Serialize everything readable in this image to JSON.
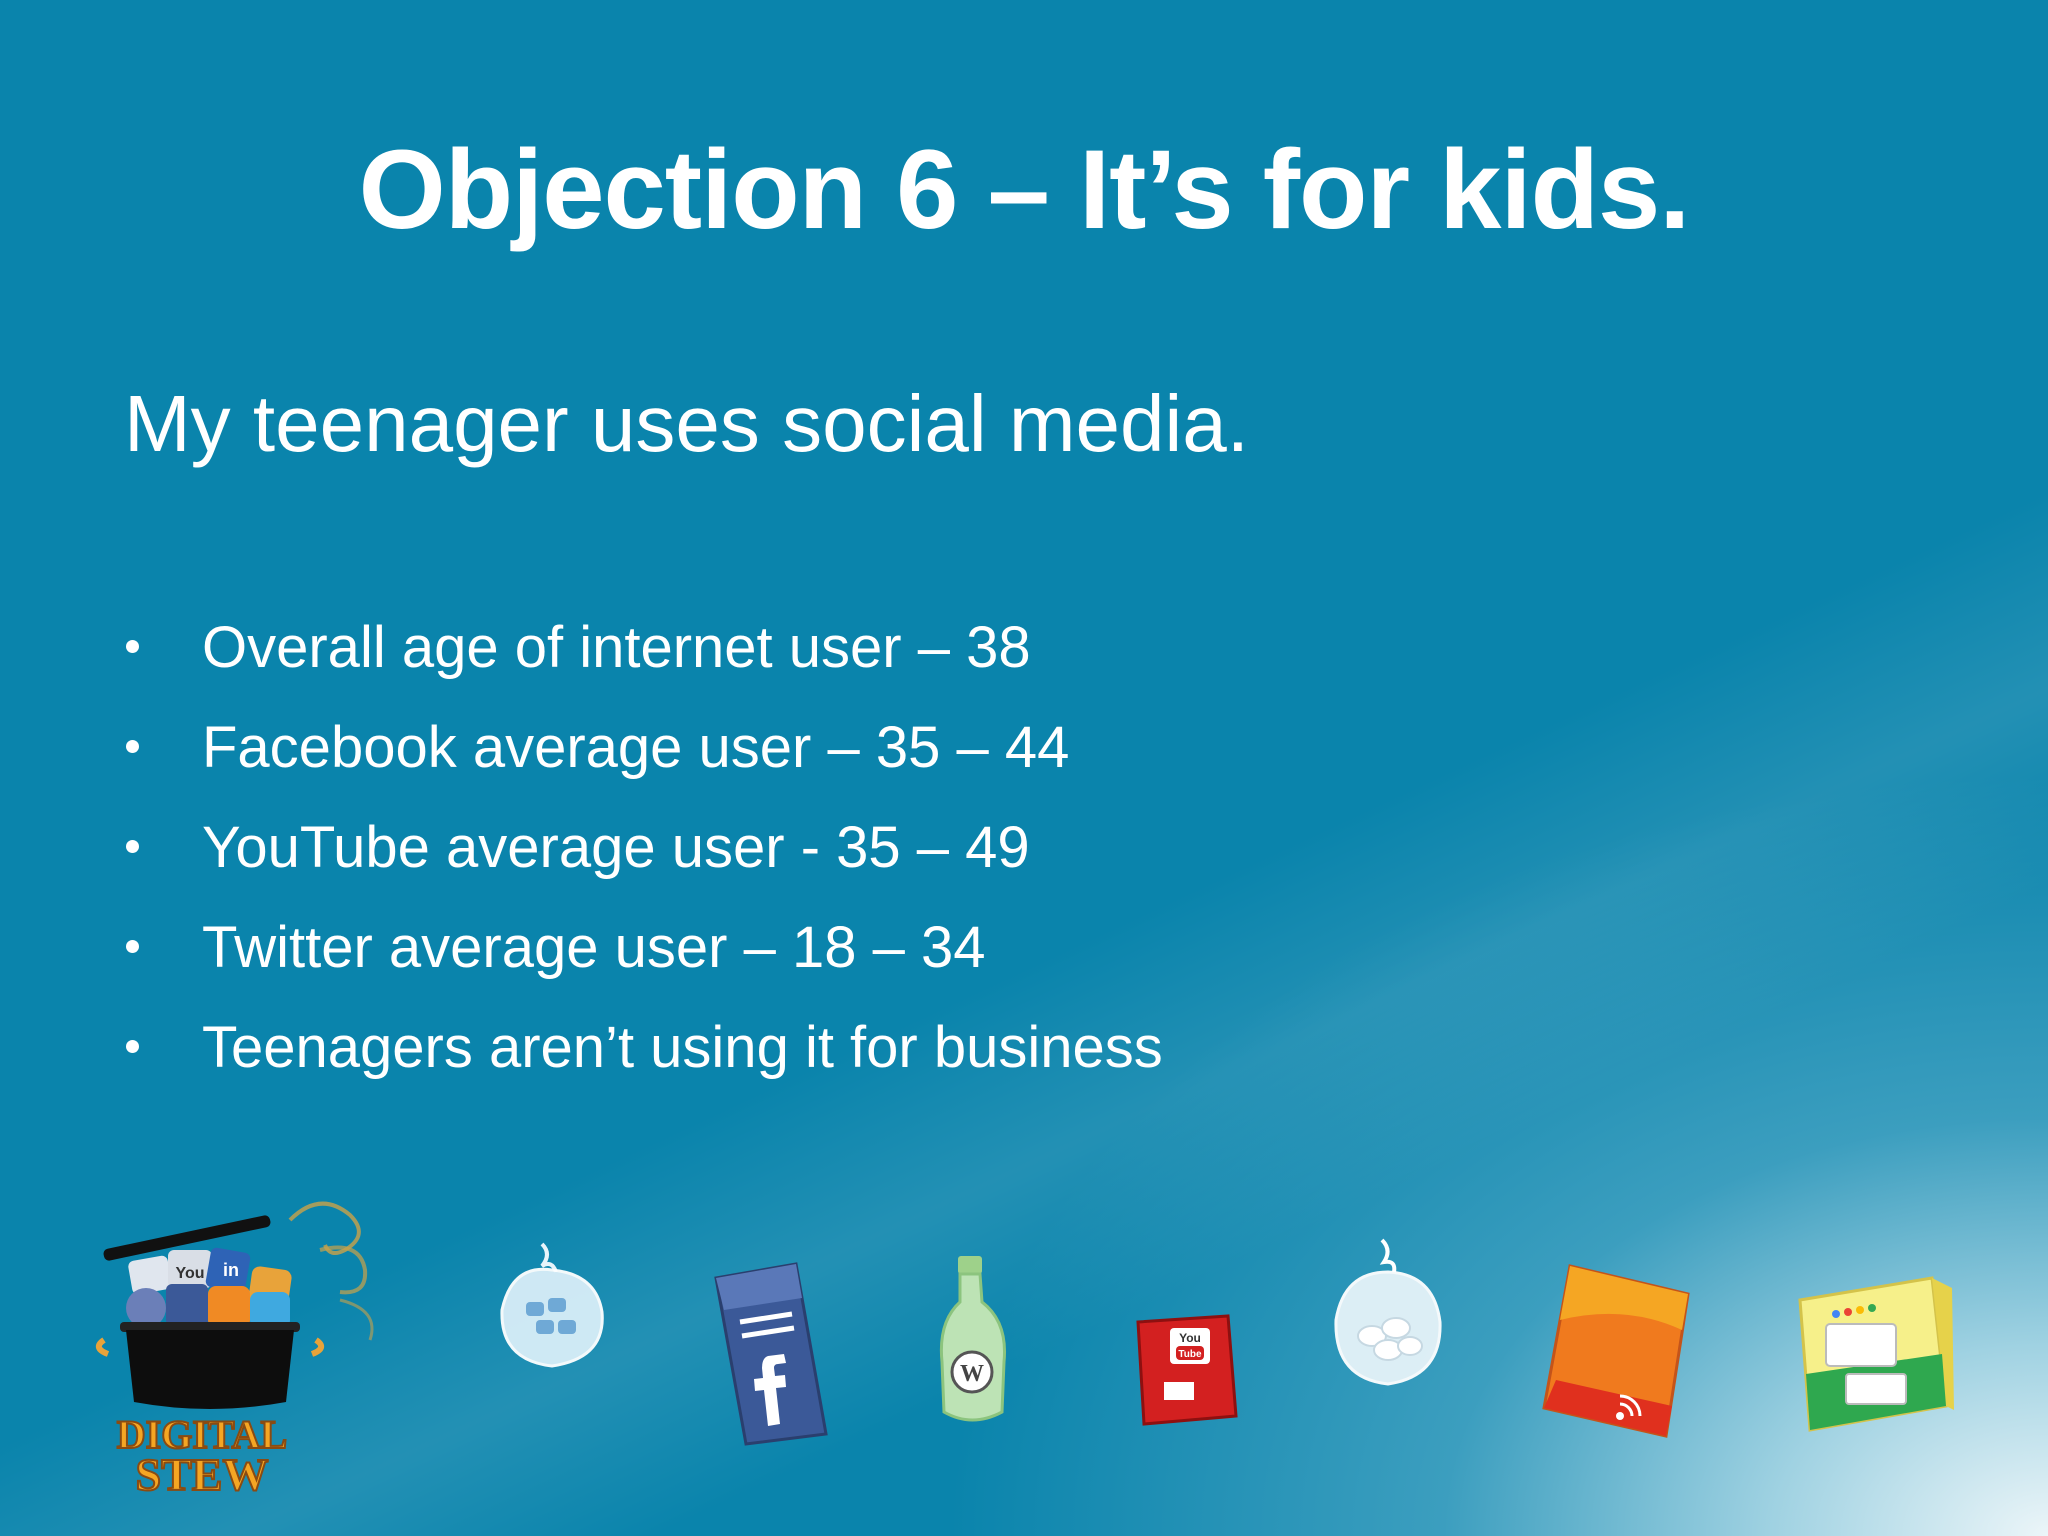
{
  "slide": {
    "title": "Objection 6 – It’s for kids.",
    "subtitle": "My teenager uses social media.",
    "bullets": [
      "Overall age of internet user – 38",
      "Facebook average user – 35 – 44",
      "YouTube average user - 35 – 49",
      "Twitter average user – 18 – 34",
      "Teenagers aren’t using it for business"
    ]
  },
  "logo": {
    "line1": "DIGITAL",
    "line2": "STEW",
    "pot_labels": [
      "You",
      "in"
    ]
  },
  "icons": {
    "youtube_label_1": "You",
    "youtube_label_2": "Tube"
  },
  "colors": {
    "background": "#0A84AC",
    "text": "#FFFFFF",
    "logo_text": "#F5A623"
  }
}
